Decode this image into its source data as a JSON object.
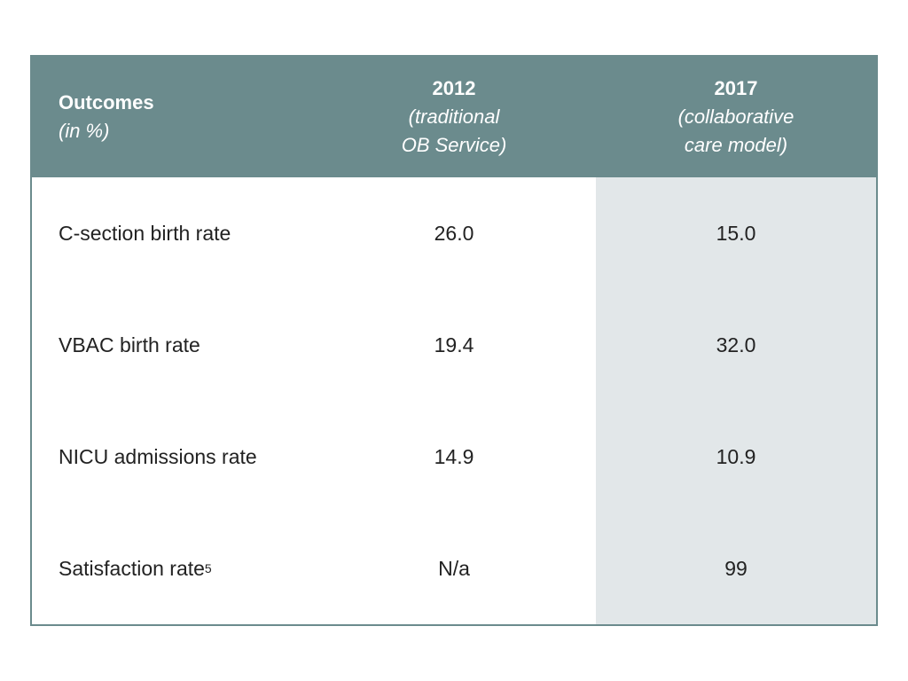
{
  "table": {
    "header": {
      "col1_title": "Outcomes",
      "col1_sub": "(in %)",
      "col2_year": "2012",
      "col2_sub1": "(traditional",
      "col2_sub2": "OB Service)",
      "col3_year": "2017",
      "col3_sub1": "(collaborative",
      "col3_sub2": "care model)"
    },
    "rows": [
      {
        "label": "C-section birth rate",
        "sup": "",
        "v2012": "26.0",
        "v2017": "15.0"
      },
      {
        "label": "VBAC birth rate",
        "sup": "",
        "v2012": "19.4",
        "v2017": "32.0"
      },
      {
        "label": "NICU admissions rate",
        "sup": "",
        "v2012": "14.9",
        "v2017": "10.9"
      },
      {
        "label": "Satisfaction rate",
        "sup": "5",
        "v2012": "N/a",
        "v2017": "99"
      }
    ],
    "colors": {
      "header_bg": "#6b8b8d",
      "highlight_bg": "#e2e7e9",
      "border": "#6b8b8d"
    }
  }
}
